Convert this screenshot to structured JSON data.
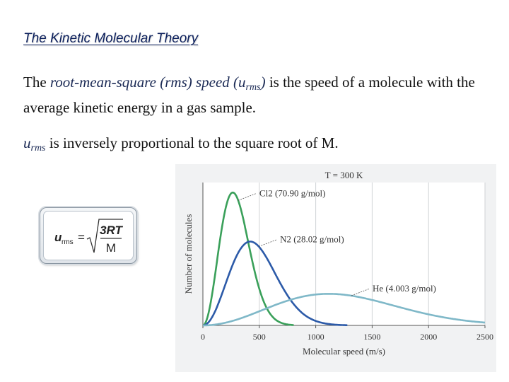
{
  "slide": {
    "title": "The Kinetic Molecular Theory",
    "para1": {
      "pre": "The ",
      "term": "root-mean-square (rms) speed (u",
      "term_sub": "rms",
      "term_close": ")",
      "post": " is the speed of a molecule with the average kinetic energy in a gas sample."
    },
    "para2": {
      "symbol": "u",
      "symbol_sub": "rms",
      "text": " is inversely proportional to the square root of M."
    }
  },
  "formula": {
    "lhs": "u",
    "lhs_sub": "rms",
    "equals": "=",
    "numerator": "3RT",
    "denominator": "M"
  },
  "chart_data": {
    "type": "line",
    "title": "T = 300 K",
    "xlabel": "Molecular speed (m/s)",
    "ylabel": "Number of molecules",
    "xlim": [
      0,
      2500
    ],
    "x_ticks": [
      0,
      500,
      1000,
      1500,
      2000,
      2500
    ],
    "grid": true,
    "series": [
      {
        "name": "Cl2 (70.90 g/mol)",
        "molar_mass": 70.9,
        "color": "#3aa05a",
        "peak_x": 265
      },
      {
        "name": "N2 (28.02 g/mol)",
        "molar_mass": 28.02,
        "color": "#2c5aa8",
        "peak_x": 420
      },
      {
        "name": "He (4.003 g/mol)",
        "molar_mass": 4.003,
        "color": "#7fb8c8",
        "peak_x": 1115
      }
    ]
  }
}
